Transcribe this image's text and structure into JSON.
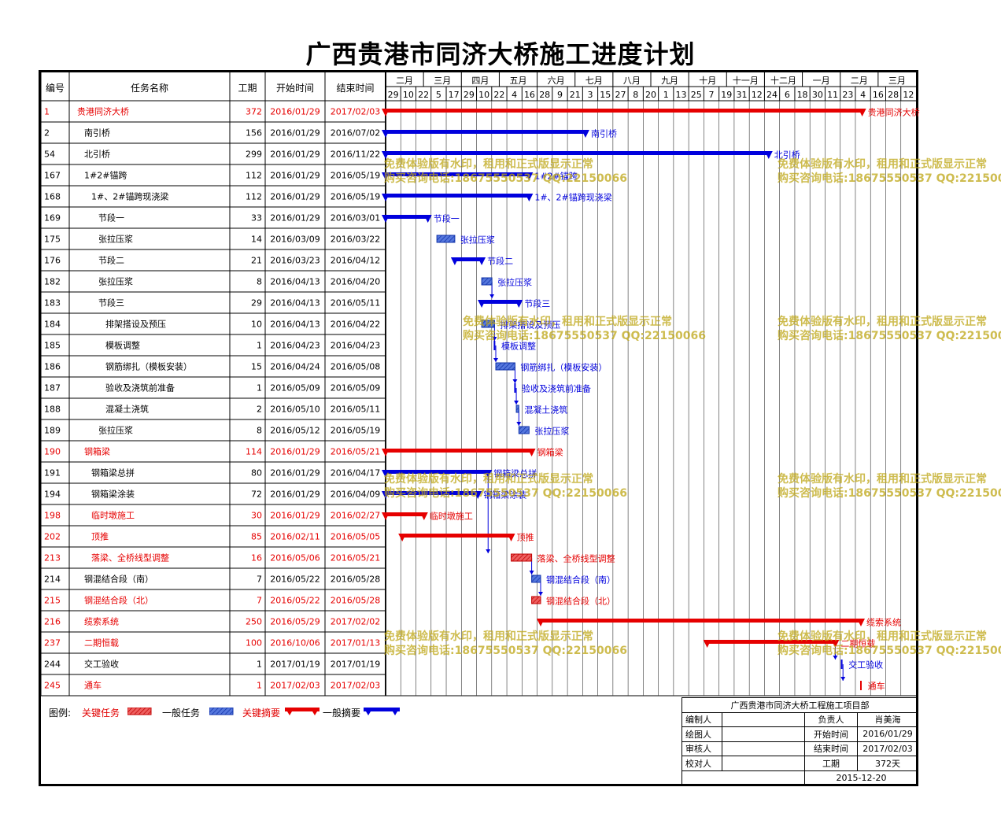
{
  "title": "广西贵港市同济大桥施工进度计划",
  "columns": {
    "id": "编号",
    "name": "任务名称",
    "dur": "工期",
    "start": "开始时间",
    "end": "结束时间"
  },
  "months": [
    "二月",
    "三月",
    "四月",
    "五月",
    "六月",
    "七月",
    "八月",
    "九月",
    "十月",
    "十一月",
    "十二月",
    "一月",
    "二月",
    "三月"
  ],
  "weeks": [
    "29",
    "10",
    "22",
    "5",
    "17",
    "29",
    "10",
    "22",
    "4",
    "16",
    "28",
    "9",
    "21",
    "3",
    "15",
    "27",
    "8",
    "20",
    "1",
    "13",
    "25",
    "7",
    "19",
    "31",
    "12",
    "24",
    "6",
    "18",
    "30",
    "11",
    "23",
    "4",
    "16",
    "28",
    "12"
  ],
  "colors": {
    "critical": "#e60000",
    "normal": "#0000dd",
    "hatch_red": "#e04040",
    "hatch_blue": "#3355cc",
    "grid": "#000000",
    "watermark": "#c8a814"
  },
  "chart_data": {
    "type": "gantt",
    "date_axis_start": "2016-01-29",
    "date_axis_end": "2017-03-18",
    "tasks": [
      {
        "id": "1",
        "name": "贵港同济大桥",
        "duration": 372,
        "start": "2016/01/29",
        "end": "2017/02/03",
        "bar": "summary",
        "critical": true,
        "indent": 0
      },
      {
        "id": "2",
        "name": "南引桥",
        "duration": 156,
        "start": "2016/01/29",
        "end": "2016/07/02",
        "bar": "summary",
        "critical": false,
        "indent": 1
      },
      {
        "id": "54",
        "name": "北引桥",
        "duration": 299,
        "start": "2016/01/29",
        "end": "2016/11/22",
        "bar": "summary",
        "critical": false,
        "indent": 1
      },
      {
        "id": "167",
        "name": "1#2#锚跨",
        "duration": 112,
        "start": "2016/01/29",
        "end": "2016/05/19",
        "bar": "summary",
        "critical": false,
        "indent": 1
      },
      {
        "id": "168",
        "name": "1#、2#锚跨现浇梁",
        "duration": 112,
        "start": "2016/01/29",
        "end": "2016/05/19",
        "bar": "summary",
        "critical": false,
        "indent": 2
      },
      {
        "id": "169",
        "name": "节段一",
        "duration": 33,
        "start": "2016/01/29",
        "end": "2016/03/01",
        "bar": "summary",
        "critical": false,
        "indent": 3
      },
      {
        "id": "175",
        "name": "张拉压浆",
        "duration": 14,
        "start": "2016/03/09",
        "end": "2016/03/22",
        "bar": "task",
        "critical": false,
        "indent": 3
      },
      {
        "id": "176",
        "name": "节段二",
        "duration": 21,
        "start": "2016/03/23",
        "end": "2016/04/12",
        "bar": "summary",
        "critical": false,
        "indent": 3
      },
      {
        "id": "182",
        "name": "张拉压浆",
        "duration": 8,
        "start": "2016/04/13",
        "end": "2016/04/20",
        "bar": "task",
        "critical": false,
        "indent": 3
      },
      {
        "id": "183",
        "name": "节段三",
        "duration": 29,
        "start": "2016/04/13",
        "end": "2016/05/11",
        "bar": "summary",
        "critical": false,
        "indent": 3
      },
      {
        "id": "184",
        "name": "排架搭设及预压",
        "duration": 10,
        "start": "2016/04/13",
        "end": "2016/04/22",
        "bar": "task",
        "critical": false,
        "indent": 4
      },
      {
        "id": "185",
        "name": "模板调整",
        "duration": 1,
        "start": "2016/04/23",
        "end": "2016/04/23",
        "bar": "task",
        "critical": false,
        "indent": 4
      },
      {
        "id": "186",
        "name": "钢筋绑扎（模板安装）",
        "duration": 15,
        "start": "2016/04/24",
        "end": "2016/05/08",
        "bar": "task",
        "critical": false,
        "indent": 4
      },
      {
        "id": "187",
        "name": "验收及浇筑前准备",
        "duration": 1,
        "start": "2016/05/09",
        "end": "2016/05/09",
        "bar": "task",
        "critical": false,
        "indent": 4
      },
      {
        "id": "188",
        "name": "混凝土浇筑",
        "duration": 2,
        "start": "2016/05/10",
        "end": "2016/05/11",
        "bar": "task",
        "critical": false,
        "indent": 4
      },
      {
        "id": "189",
        "name": "张拉压浆",
        "duration": 8,
        "start": "2016/05/12",
        "end": "2016/05/19",
        "bar": "task",
        "critical": false,
        "indent": 3
      },
      {
        "id": "190",
        "name": "钢箱梁",
        "duration": 114,
        "start": "2016/01/29",
        "end": "2016/05/21",
        "bar": "summary",
        "critical": true,
        "indent": 1
      },
      {
        "id": "191",
        "name": "钢箱梁总拼",
        "duration": 80,
        "start": "2016/01/29",
        "end": "2016/04/17",
        "bar": "summary",
        "critical": false,
        "indent": 2
      },
      {
        "id": "194",
        "name": "钢箱梁涂装",
        "duration": 72,
        "start": "2016/01/29",
        "end": "2016/04/09",
        "bar": "summary",
        "critical": false,
        "indent": 2
      },
      {
        "id": "198",
        "name": "临时墩施工",
        "duration": 30,
        "start": "2016/01/29",
        "end": "2016/02/27",
        "bar": "summary",
        "critical": true,
        "indent": 2
      },
      {
        "id": "202",
        "name": "顶推",
        "duration": 85,
        "start": "2016/02/11",
        "end": "2016/05/05",
        "bar": "summary",
        "critical": true,
        "indent": 2
      },
      {
        "id": "213",
        "name": "落梁、全桥线型调整",
        "duration": 16,
        "start": "2016/05/06",
        "end": "2016/05/21",
        "bar": "task",
        "critical": true,
        "indent": 2
      },
      {
        "id": "214",
        "name": "钢混结合段（南）",
        "duration": 7,
        "start": "2016/05/22",
        "end": "2016/05/28",
        "bar": "task",
        "critical": false,
        "indent": 1
      },
      {
        "id": "215",
        "name": "钢混结合段（北）",
        "duration": 7,
        "start": "2016/05/22",
        "end": "2016/05/28",
        "bar": "task",
        "critical": true,
        "indent": 1
      },
      {
        "id": "216",
        "name": "缆索系统",
        "duration": 250,
        "start": "2016/05/29",
        "end": "2017/02/02",
        "bar": "summary",
        "critical": true,
        "indent": 1
      },
      {
        "id": "237",
        "name": "二期恒载",
        "duration": 100,
        "start": "2016/10/06",
        "end": "2017/01/13",
        "bar": "summary",
        "critical": true,
        "indent": 1
      },
      {
        "id": "244",
        "name": "交工验收",
        "duration": 1,
        "start": "2017/01/19",
        "end": "2017/01/19",
        "bar": "task",
        "critical": false,
        "indent": 1
      },
      {
        "id": "245",
        "name": "通车",
        "duration": 1,
        "start": "2017/02/03",
        "end": "2017/02/03",
        "bar": "task",
        "critical": true,
        "indent": 1
      }
    ],
    "links": [
      [
        "182",
        "183"
      ],
      [
        "184",
        "185"
      ],
      [
        "185",
        "186"
      ],
      [
        "186",
        "187"
      ],
      [
        "187",
        "188"
      ],
      [
        "188",
        "189"
      ],
      [
        "191",
        "213"
      ],
      [
        "213",
        "214"
      ],
      [
        "214",
        "215"
      ],
      [
        "237",
        "244"
      ],
      [
        "244",
        "245"
      ]
    ]
  },
  "watermark": {
    "line1": "免费体验版有水印，租用和正式版显示正常",
    "line2": "购买咨询电话:18675550537 QQ:22150066"
  },
  "legend": {
    "label": "图例:",
    "critical_task": "关键任务",
    "normal_task": "一般任务",
    "critical_summary": "关键摘要",
    "normal_summary": "一般摘要"
  },
  "signoff": {
    "project": "广西贵港市同济大桥工程施工项目部",
    "compiler": "编制人",
    "drawer": "绘图人",
    "reviewer": "审核人",
    "checker": "校对人",
    "manager_label": "负责人",
    "manager": "肖美海",
    "start_label": "开始时间",
    "start": "2016/01/29",
    "end_label": "结束时间",
    "end": "2017/02/03",
    "duration_label": "工期",
    "duration": "372天",
    "date": "2015-12-20"
  }
}
